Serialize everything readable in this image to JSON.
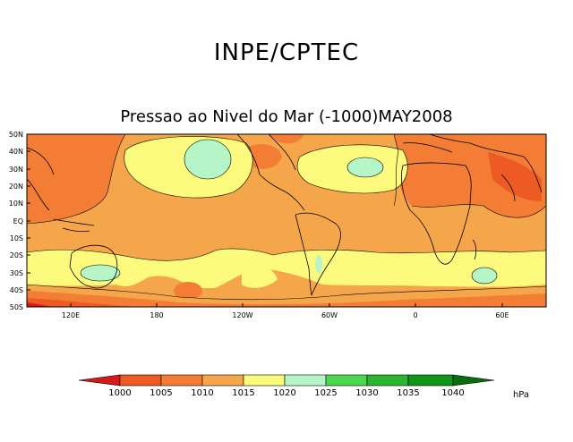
{
  "header": {
    "title": "INPE/CPTEC",
    "subtitle": "Pressao ao Nivel do Mar (-1000)MAY2008"
  },
  "map": {
    "lat_labels": [
      "50N",
      "40N",
      "30N",
      "20N",
      "10N",
      "EQ",
      "10S",
      "20S",
      "30S",
      "40S",
      "50S"
    ],
    "lon_labels": [
      "120E",
      "180",
      "120W",
      "60W",
      "0",
      "60E"
    ]
  },
  "colorbar": {
    "levels": [
      "1000",
      "1005",
      "1010",
      "1015",
      "1020",
      "1025",
      "1030",
      "1035",
      "1040"
    ],
    "colors": [
      "#d7191c",
      "#ee5a24",
      "#f37d35",
      "#f5a64a",
      "#fbfa7c",
      "#b5f5c8",
      "#4bd84e",
      "#2bb52e",
      "#129416",
      "#0a6d10"
    ],
    "unit": "hPa"
  }
}
